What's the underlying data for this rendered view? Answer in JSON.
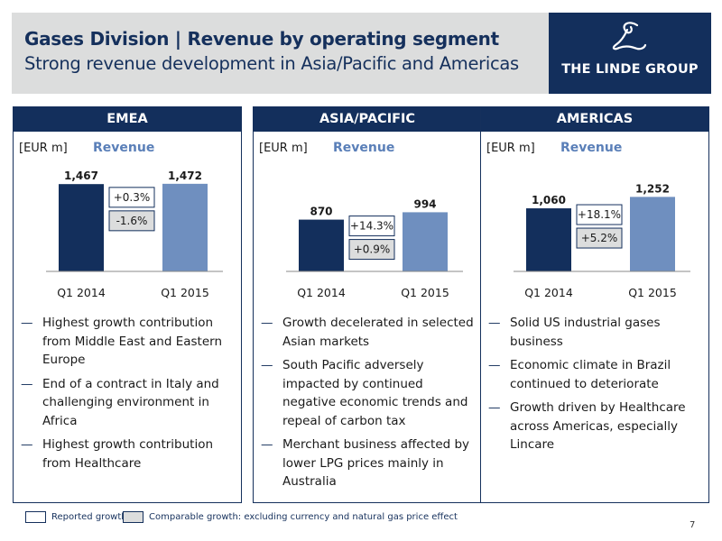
{
  "header": {
    "title": "Gases Division | Revenue by operating segment",
    "subtitle": "Strong revenue development in Asia/Pacific and Americas",
    "logo_text": "THE LINDE GROUP"
  },
  "colors": {
    "navy": "#132f5c",
    "bar_2014": "#132f5c",
    "bar_2015": "#6f8fbf",
    "metric_label": "#5a7fb8",
    "header_bg": "#dcdddd",
    "comparable_box": "#dcdddd"
  },
  "panels": [
    {
      "title": "EMEA",
      "unit": "[EUR m]",
      "metric": "Revenue",
      "bullets": [
        "Highest growth contribution from Middle East and Eastern Europe",
        "End of a contract in Italy and challenging environment in Africa",
        "Highest growth contribution from Healthcare"
      ]
    },
    {
      "title": "ASIA/PACIFIC",
      "unit": "[EUR m]",
      "metric": "Revenue",
      "bullets": [
        "Growth decelerated in selected Asian markets",
        "South Pacific adversely impacted by  continued negative economic trends and repeal of carbon tax",
        "Merchant business affected by lower LPG prices mainly in Australia"
      ]
    },
    {
      "title": "AMERICAS",
      "unit": "[EUR m]",
      "metric": "Revenue",
      "bullets": [
        "Solid US industrial gases business",
        "Economic climate in Brazil continued to deteriorate",
        "Growth driven by Healthcare across Americas, especially Lincare"
      ]
    }
  ],
  "chart_data": [
    {
      "type": "bar",
      "categories": [
        "Q1 2014",
        "Q1 2015"
      ],
      "values": [
        1467,
        1472
      ],
      "value_labels": [
        "1,467",
        "1,472"
      ],
      "reported_growth": "+0.3%",
      "comparable_growth": "-1.6%",
      "ylim": [
        0,
        1500
      ]
    },
    {
      "type": "bar",
      "categories": [
        "Q1 2014",
        "Q1 2015"
      ],
      "values": [
        870,
        994
      ],
      "value_labels": [
        "870",
        "994"
      ],
      "reported_growth": "+14.3%",
      "comparable_growth": "+0.9%",
      "ylim": [
        0,
        1500
      ]
    },
    {
      "type": "bar",
      "categories": [
        "Q1 2014",
        "Q1 2015"
      ],
      "values": [
        1060,
        1252
      ],
      "value_labels": [
        "1,060",
        "1,252"
      ],
      "reported_growth": "+18.1%",
      "comparable_growth": "+5.2%",
      "ylim": [
        0,
        1500
      ]
    }
  ],
  "legend": {
    "reported": "Reported growth",
    "comparable": "Comparable growth: excluding currency and natural gas price effect"
  },
  "page_number": "7"
}
